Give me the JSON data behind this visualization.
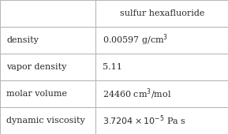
{
  "title_col": "sulfur hexafluoride",
  "rows": [
    {
      "label": "density",
      "value": "0.00597 g/cm$^3$"
    },
    {
      "label": "vapor density",
      "value": "5.11"
    },
    {
      "label": "molar volume",
      "value": "24460 cm$^3$/mol"
    },
    {
      "label": "dynamic viscosity",
      "value": "$3.7204\\times10^{-5}$ Pa s"
    }
  ],
  "col_split": 0.42,
  "bg_color": "#ffffff",
  "border_color": "#aaaaaa",
  "text_color": "#2a2a2a",
  "font_size": 8.0
}
